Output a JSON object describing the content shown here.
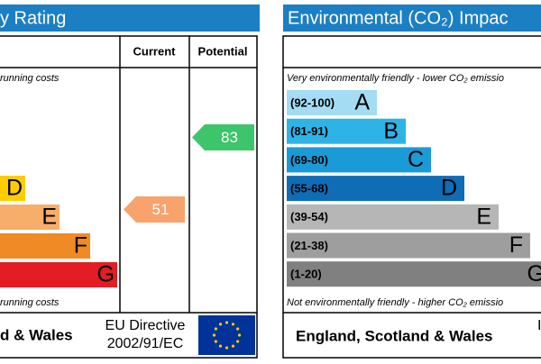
{
  "left": {
    "title": "y Rating",
    "headers": [
      "Current",
      "Potential"
    ],
    "top_note": "running costs",
    "bands": [
      {
        "letter": "D"
      },
      {
        "letter": "E"
      },
      {
        "letter": "F"
      },
      {
        "letter": "G"
      }
    ],
    "current": 51,
    "potential": 83,
    "bottom_note": "running costs",
    "footer": "d & Wales",
    "directive": [
      "EU Directive",
      "2002/91/EC"
    ]
  },
  "right": {
    "title": "Environmental (CO₂) Impac",
    "top_note": "Very environmentally friendly - lower CO₂ emissio",
    "bands": [
      {
        "range": "(92-100)",
        "letter": "A"
      },
      {
        "range": "(81-91)",
        "letter": "B"
      },
      {
        "range": "(69-80)",
        "letter": "C"
      },
      {
        "range": "(55-68)",
        "letter": "D"
      },
      {
        "range": "(39-54)",
        "letter": "E"
      },
      {
        "range": "(21-38)",
        "letter": "F"
      },
      {
        "range": "(1-20)",
        "letter": "G"
      }
    ],
    "bottom_note": "Not environmentally friendly - higher CO₂ emissio",
    "footer": "England, Scotland & Wales",
    "directive": "I"
  }
}
